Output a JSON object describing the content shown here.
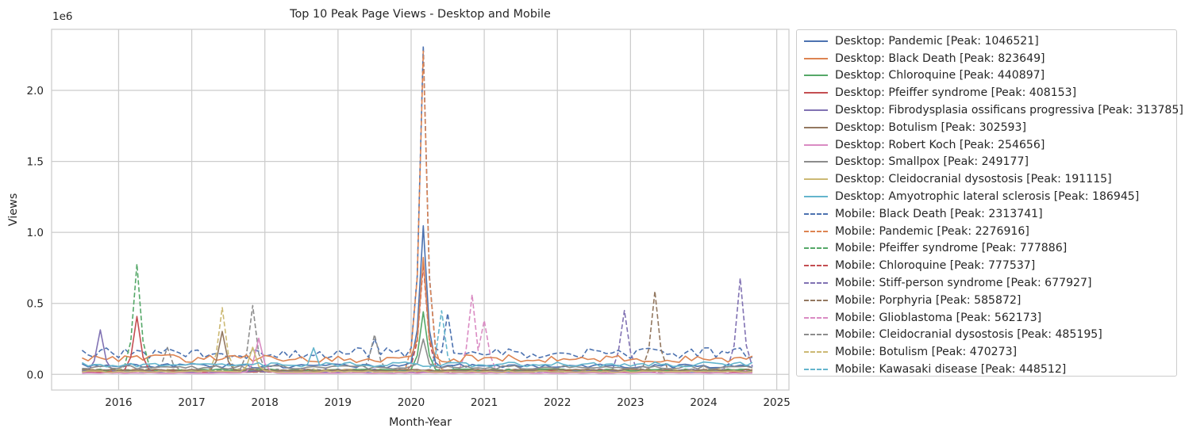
{
  "chart_data": {
    "type": "line",
    "title": "Top 10 Peak Page Views - Desktop and Mobile",
    "xlabel": "Month-Year",
    "ylabel": "Views",
    "y_offset_text": "1e6",
    "xlim": [
      "2015-02",
      "2025-03"
    ],
    "ylim": [
      -0.11,
      2.43
    ],
    "x_ticks": [
      "2016",
      "2017",
      "2018",
      "2019",
      "2020",
      "2021",
      "2022",
      "2023",
      "2024",
      "2025"
    ],
    "y_ticks": [
      "0.0",
      "0.5",
      "1.0",
      "1.5",
      "2.0"
    ],
    "y_tick_values": [
      0,
      0.5,
      1.0,
      1.5,
      2.0
    ],
    "grid": true,
    "legend_position": "outside-right",
    "x_start": "2015-07",
    "x_end": "2024-09",
    "series": [
      {
        "name": "Desktop: Pandemic [Peak: 1046521]",
        "platform": "Desktop",
        "color": "#4c72b0",
        "style": "solid",
        "peak": 1.0465,
        "peak_date": "2020-03",
        "base": 0.06,
        "events": []
      },
      {
        "name": "Desktop: Black Death [Peak: 823649]",
        "platform": "Desktop",
        "color": "#dd8452",
        "style": "solid",
        "peak": 0.8236,
        "peak_date": "2020-03",
        "base": 0.11,
        "events": []
      },
      {
        "name": "Desktop: Chloroquine [Peak: 440897]",
        "platform": "Desktop",
        "color": "#55a868",
        "style": "solid",
        "peak": 0.4409,
        "peak_date": "2020-03",
        "base": 0.03,
        "events": []
      },
      {
        "name": "Desktop: Pfeiffer syndrome [Peak: 408153]",
        "platform": "Desktop",
        "color": "#c44e52",
        "style": "solid",
        "peak": 0.4082,
        "peak_date": "2016-04",
        "base": 0.02,
        "events": []
      },
      {
        "name": "Desktop: Fibrodysplasia ossificans progressiva [Peak: 313785]",
        "platform": "Desktop",
        "color": "#8172b3",
        "style": "solid",
        "peak": 0.3138,
        "peak_date": "2015-10",
        "base": 0.02,
        "events": []
      },
      {
        "name": "Desktop: Botulism [Peak: 302593]",
        "platform": "Desktop",
        "color": "#937860",
        "style": "solid",
        "peak": 0.3026,
        "peak_date": "2017-06",
        "base": 0.03,
        "events": []
      },
      {
        "name": "Desktop: Robert Koch [Peak: 254656]",
        "platform": "Desktop",
        "color": "#da8bc3",
        "style": "solid",
        "peak": 0.2547,
        "peak_date": "2017-12",
        "base": 0.01,
        "events": []
      },
      {
        "name": "Desktop: Smallpox [Peak: 249177]",
        "platform": "Desktop",
        "color": "#8c8c8c",
        "style": "solid",
        "peak": 0.2492,
        "peak_date": "2020-03",
        "base": 0.05,
        "events": []
      },
      {
        "name": "Desktop: Cleidocranial dysostosis [Peak: 191115]",
        "platform": "Desktop",
        "color": "#ccb974",
        "style": "solid",
        "peak": 0.1911,
        "peak_date": "2017-11",
        "base": 0.02,
        "events": []
      },
      {
        "name": "Desktop: Amyotrophic lateral sclerosis [Peak: 186945]",
        "platform": "Desktop",
        "color": "#64b5cd",
        "style": "solid",
        "peak": 0.1869,
        "peak_date": "2018-09",
        "base": 0.07,
        "events": []
      },
      {
        "name": "Mobile: Black Death [Peak: 2313741]",
        "platform": "Mobile",
        "color": "#4c72b0",
        "style": "dashed",
        "peak": 2.3137,
        "peak_date": "2020-03",
        "base": 0.15,
        "events": [
          [
            "2019-07",
            0.25
          ],
          [
            "2020-07",
            0.43
          ]
        ]
      },
      {
        "name": "Mobile: Pandemic [Peak: 2276916]",
        "platform": "Mobile",
        "color": "#dd8452",
        "style": "dashed",
        "peak": 2.2769,
        "peak_date": "2020-03",
        "base": 0.03,
        "events": []
      },
      {
        "name": "Mobile: Pfeiffer syndrome [Peak: 777886]",
        "platform": "Mobile",
        "color": "#55a868",
        "style": "dashed",
        "peak": 0.7779,
        "peak_date": "2016-04",
        "base": 0.02,
        "events": []
      },
      {
        "name": "Mobile: Chloroquine [Peak: 777537]",
        "platform": "Mobile",
        "color": "#c44e52",
        "style": "dashed",
        "peak": 0.7775,
        "peak_date": "2020-03",
        "base": 0.02,
        "events": []
      },
      {
        "name": "Mobile: Stiff-person syndrome [Peak: 677927]",
        "platform": "Mobile",
        "color": "#8172b3",
        "style": "dashed",
        "peak": 0.6779,
        "peak_date": "2024-07",
        "base": 0.03,
        "events": [
          [
            "2022-12",
            0.45
          ]
        ]
      },
      {
        "name": "Mobile: Porphyria [Peak: 585872]",
        "platform": "Mobile",
        "color": "#937860",
        "style": "dashed",
        "peak": 0.5859,
        "peak_date": "2023-05",
        "base": 0.02,
        "events": []
      },
      {
        "name": "Mobile: Glioblastoma [Peak: 562173]",
        "platform": "Mobile",
        "color": "#da8bc3",
        "style": "dashed",
        "peak": 0.5622,
        "peak_date": "2020-11",
        "base": 0.02,
        "events": [
          [
            "2021-01",
            0.38
          ]
        ]
      },
      {
        "name": "Mobile: Cleidocranial dysostosis [Peak: 485195]",
        "platform": "Mobile",
        "color": "#8c8c8c",
        "style": "dashed",
        "peak": 0.4852,
        "peak_date": "2017-11",
        "base": 0.03,
        "events": [
          [
            "2016-09",
            0.19
          ],
          [
            "2019-07",
            0.28
          ]
        ]
      },
      {
        "name": "Mobile: Botulism [Peak: 470273]",
        "platform": "Mobile",
        "color": "#ccb974",
        "style": "dashed",
        "peak": 0.4703,
        "peak_date": "2017-06",
        "base": 0.03,
        "events": []
      },
      {
        "name": "Mobile: Kawasaki disease [Peak: 448512]",
        "platform": "Mobile",
        "color": "#64b5cd",
        "style": "dashed",
        "peak": 0.4485,
        "peak_date": "2020-06",
        "base": 0.02,
        "events": []
      }
    ]
  }
}
